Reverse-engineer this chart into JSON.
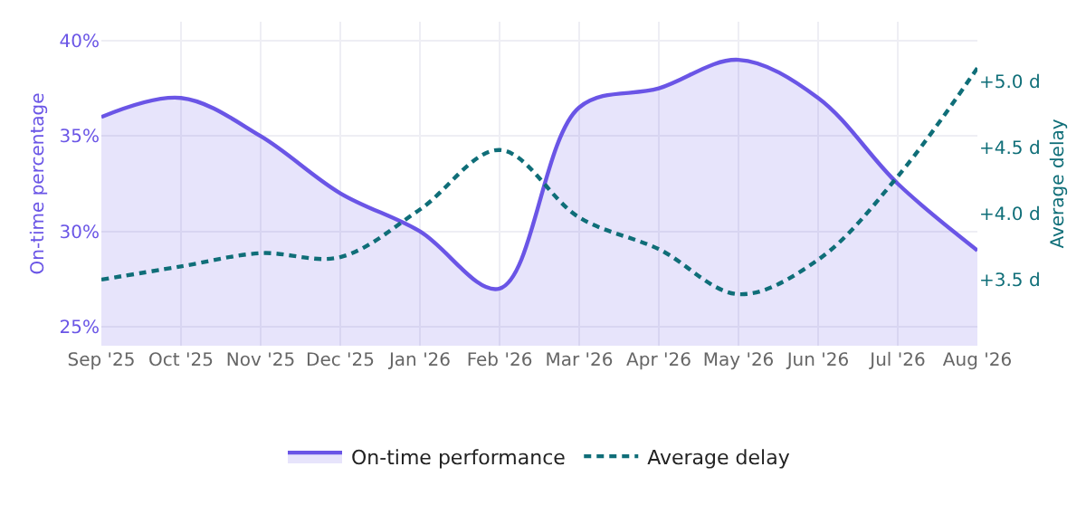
{
  "chart_data": {
    "type": "area",
    "ylabel": "On-time percentage",
    "y2label": "Average delay",
    "categories": [
      "Sep '25",
      "Oct '25",
      "Nov '25",
      "Dec '25",
      "Jan '26",
      "Feb '26",
      "Mar '26",
      "Apr '26",
      "May '26",
      "Jun '26",
      "Jul '26",
      "Aug '26"
    ],
    "series": [
      {
        "name": "On-time performance",
        "color": "#6a55e6",
        "values": [
          36,
          37,
          35,
          32,
          30,
          27,
          36.5,
          37.5,
          39,
          37,
          32.5,
          29
        ]
      },
      {
        "name": "Average delay",
        "type": "line",
        "axis": "y2",
        "color": "#0f6e78",
        "line_style": "dashed",
        "values": [
          3.5,
          3.6,
          3.7,
          3.67,
          4.03,
          4.48,
          3.97,
          3.73,
          3.39,
          3.65,
          4.28,
          5.1
        ]
      }
    ],
    "ylim": [
      24,
      41
    ],
    "yticks": [
      {
        "value": 25,
        "label": "25%"
      },
      {
        "value": 30,
        "label": "30%"
      },
      {
        "value": 35,
        "label": "35%"
      },
      {
        "value": 40,
        "label": "40%"
      }
    ],
    "y2lim": [
      3.0,
      5.45
    ],
    "y2ticks": [
      {
        "value": 3.5,
        "label": "+3.5 d"
      },
      {
        "value": 4,
        "label": "+4.0 d"
      },
      {
        "value": 4.5,
        "label": "+4.5 d"
      },
      {
        "value": 5,
        "label": "+5.0 d"
      }
    ],
    "grid": true,
    "legend": "bottom",
    "marker": "none"
  }
}
